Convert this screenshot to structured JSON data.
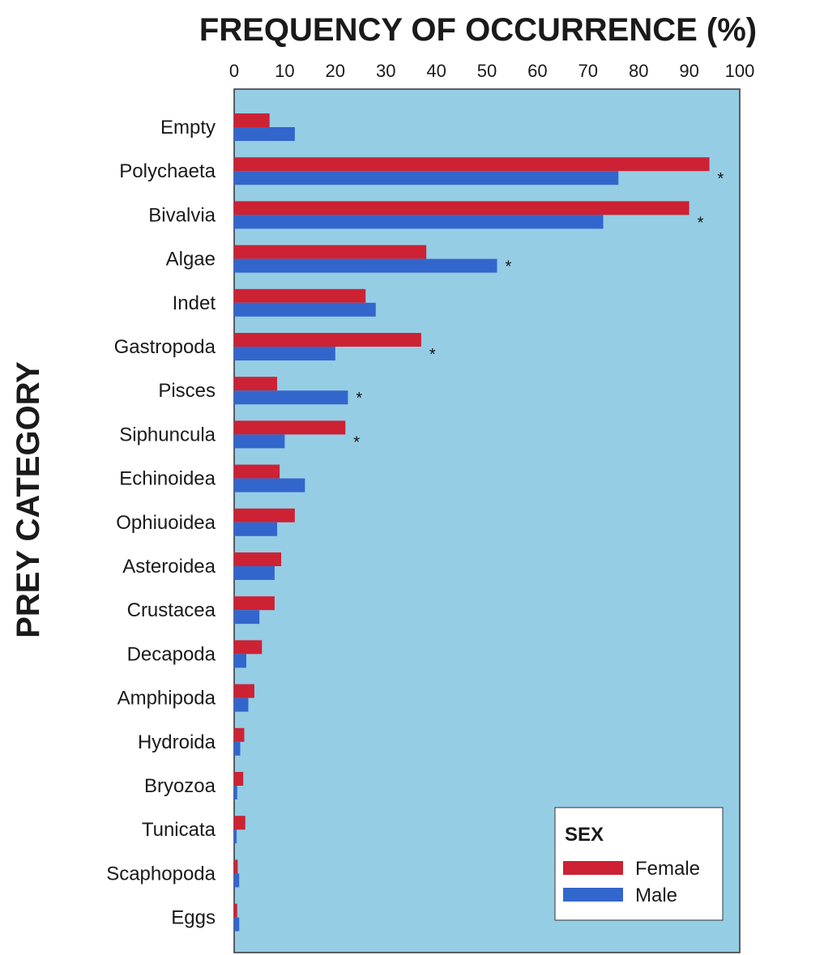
{
  "chart_data": {
    "type": "bar",
    "orientation": "horizontal",
    "title": "FREQUENCY OF OCCURRENCE (%)",
    "xlabel": "FREQUENCY OF OCCURRENCE (%)",
    "ylabel": "PREY CATEGORY",
    "xlim": [
      0,
      100
    ],
    "xticks": [
      0,
      10,
      20,
      30,
      40,
      50,
      60,
      70,
      80,
      90,
      100
    ],
    "categories": [
      "Empty",
      "Polychaeta",
      "Bivalvia",
      "Algae",
      "Indet",
      "Gastropoda",
      "Pisces",
      "Siphuncula",
      "Echinoidea",
      "Ophiuoidea",
      "Asteroidea",
      "Crustacea",
      "Decapoda",
      "Amphipoda",
      "Hydroida",
      "Bryozoa",
      "Tunicata",
      "Scaphopoda",
      "Eggs"
    ],
    "series": [
      {
        "name": "Female",
        "color": "#cc2233",
        "values": [
          7,
          94,
          90,
          38,
          26,
          37,
          8.5,
          22,
          9,
          12,
          9.3,
          8,
          5.5,
          4,
          2,
          1.8,
          2.2,
          0.7,
          0.6
        ]
      },
      {
        "name": "Male",
        "color": "#3366cc",
        "values": [
          12,
          76,
          73,
          52,
          28,
          20,
          22.5,
          10,
          14,
          8.5,
          8,
          5,
          2.4,
          2.8,
          1.2,
          0.6,
          0.5,
          1,
          1
        ]
      }
    ],
    "significance_marks": [
      {
        "category": "Polychaeta",
        "text": "*"
      },
      {
        "category": "Bivalvia",
        "text": "*"
      },
      {
        "category": "Algae",
        "text": "*"
      },
      {
        "category": "Gastropoda",
        "text": "*"
      },
      {
        "category": "Pisces",
        "text": "*"
      },
      {
        "category": "Siphuncula",
        "text": "*"
      }
    ],
    "legend": {
      "title": "SEX",
      "position": "bottom-right"
    },
    "background_color": "#95cde5",
    "grid": false
  }
}
